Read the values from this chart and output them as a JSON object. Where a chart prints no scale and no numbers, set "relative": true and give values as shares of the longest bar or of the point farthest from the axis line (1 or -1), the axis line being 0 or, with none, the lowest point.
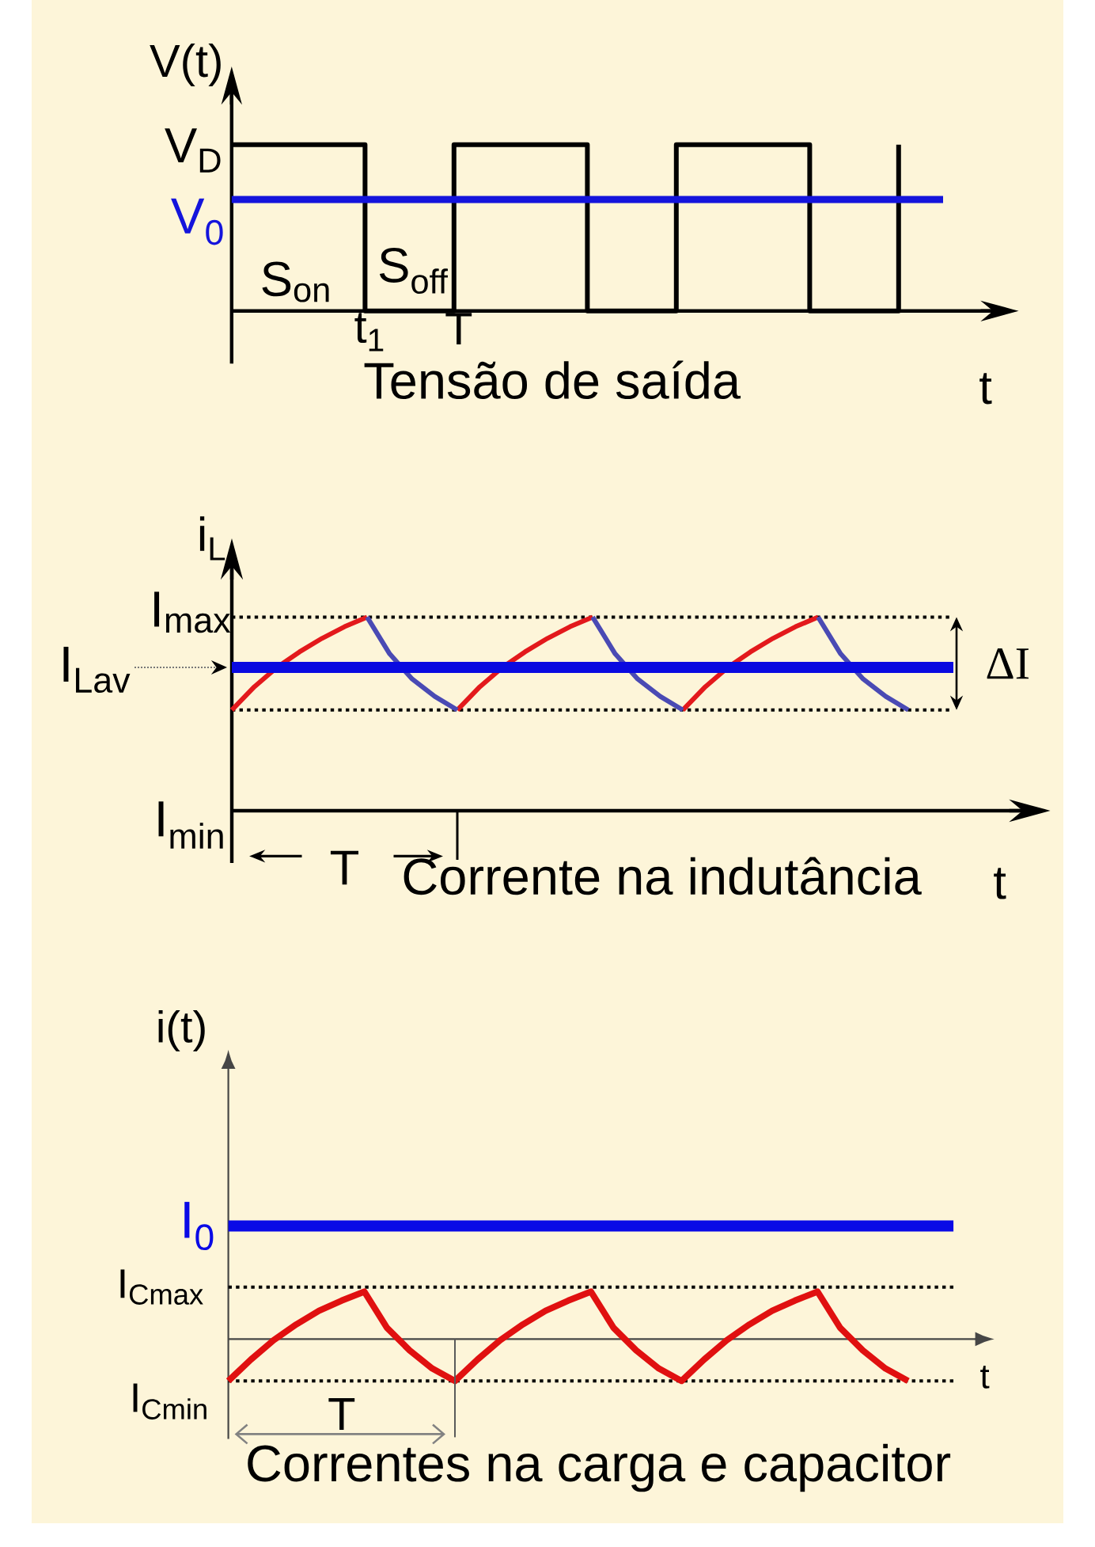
{
  "chart_data": [
    {
      "type": "line",
      "title": "Tensão de saída",
      "xlabel": "t",
      "ylabel": "V(t)",
      "relative": true,
      "categories": [
        null,
        null,
        null,
        "t$_{1}$",
        null,
        "T",
        null,
        null,
        null,
        null,
        null,
        null,
        null,
        null,
        null,
        null,
        null
      ],
      "series": [
        {
          "type": "step",
          "color": "#000000",
          "values": [
            1,
            1,
            1,
            0,
            0,
            1,
            1,
            1,
            0,
            0,
            1,
            1,
            1,
            0,
            0,
            1,
            null
          ]
        },
        {
          "name": "V$_{0}$",
          "color": "#1414dc",
          "values": [
            0.67,
            0.67,
            0.67,
            0.67,
            0.67,
            0.67,
            0.67,
            0.67,
            0.67,
            0.67,
            0.67,
            0.67,
            0.67,
            0.67,
            0.67,
            0.67,
            0.67
          ]
        }
      ],
      "annotations": [
        "V$_{D}$",
        "S$_{on}$",
        "S$_{off}$"
      ]
    },
    {
      "type": "line",
      "title": "Corrente na indutância",
      "xlabel": "t",
      "ylabel": "i$_{L}$",
      "relative": true,
      "categories": [
        null,
        null,
        null,
        null,
        null,
        null,
        null,
        null,
        null,
        null,
        null,
        null,
        null,
        null,
        null,
        null,
        null,
        null,
        null,
        null,
        null,
        null,
        null,
        null,
        null,
        null,
        null,
        null,
        null,
        null,
        null,
        null,
        null
      ],
      "series": [
        {
          "color": "#e3191c",
          "values": [
            0.52,
            0.64,
            0.74,
            0.82,
            0.89,
            0.95,
            1.0,
            null,
            null,
            null,
            0.52,
            0.64,
            0.74,
            0.82,
            0.89,
            0.95,
            1.0,
            null,
            null,
            null,
            0.52,
            0.64,
            0.74,
            0.82,
            0.89,
            0.95,
            1.0,
            null,
            null,
            null,
            null,
            null,
            null
          ]
        },
        {
          "color": "#4a4ab4",
          "values": [
            null,
            null,
            null,
            null,
            null,
            null,
            1.0,
            0.81,
            0.68,
            0.59,
            0.52,
            null,
            null,
            null,
            null,
            null,
            1.0,
            0.81,
            0.68,
            0.59,
            0.52,
            null,
            null,
            null,
            null,
            null,
            1.0,
            0.81,
            0.68,
            0.59,
            0.52,
            null,
            null
          ]
        },
        {
          "color": "#0a0ae0",
          "values": [
            0.74,
            0.74,
            0.74,
            0.74,
            0.74,
            0.74,
            0.74,
            0.74,
            0.74,
            0.74,
            0.74,
            0.74,
            0.74,
            0.74,
            0.74,
            0.74,
            0.74,
            0.74,
            0.74,
            0.74,
            0.74,
            0.74,
            0.74,
            0.74,
            0.74,
            0.74,
            0.74,
            0.74,
            0.74,
            0.74,
            0.74,
            0.74,
            0.74
          ]
        }
      ],
      "ref_lines": [
        {
          "axis": "y",
          "value": 1,
          "label": "I$_{max}$",
          "line_style": "dotted",
          "color": "#000000"
        },
        {
          "axis": "y",
          "value": 0.52,
          "line_style": "dotted",
          "color": "#000000"
        }
      ],
      "annotations": [
        "I$_{Lav}$",
        "I$_{min}$",
        "T",
        "ΔI"
      ]
    },
    {
      "type": "line",
      "title": "Correntes na carga e capacitor",
      "xlabel": "t",
      "ylabel": "i(t)",
      "relative": true,
      "categories": [
        null,
        null,
        null,
        null,
        null,
        null,
        null,
        null,
        null,
        null,
        null,
        null,
        null,
        null,
        null,
        null,
        null,
        null,
        null,
        null,
        null,
        null,
        null,
        null,
        null,
        null,
        null,
        null,
        null,
        null,
        null,
        null,
        null
      ],
      "series": [
        {
          "name": "I$_{0}$",
          "color": "#0a0ae6",
          "values": [
            1,
            1,
            1,
            1,
            1,
            1,
            1,
            1,
            1,
            1,
            1,
            1,
            1,
            1,
            1,
            1,
            1,
            1,
            1,
            1,
            1,
            1,
            1,
            1,
            1,
            1,
            1,
            1,
            1,
            1,
            1,
            1,
            1
          ]
        },
        {
          "color": "#e01010",
          "values": [
            -0.37,
            -0.18,
            -0.01,
            0.13,
            0.25,
            0.34,
            0.42,
            0.1,
            -0.1,
            -0.26,
            -0.37,
            -0.18,
            -0.01,
            0.13,
            0.25,
            0.34,
            0.42,
            0.1,
            -0.1,
            -0.26,
            -0.37,
            -0.18,
            -0.01,
            0.13,
            0.25,
            0.34,
            0.42,
            0.1,
            -0.1,
            -0.26,
            -0.37,
            null,
            null
          ]
        }
      ],
      "ref_lines": [
        {
          "axis": "y",
          "value": 0.46,
          "label": "I$_{Cmax}$",
          "line_style": "dotted",
          "color": "#000000"
        },
        {
          "axis": "y",
          "value": -0.37,
          "label": "I$_{Cmin}$",
          "line_style": "dotted",
          "color": "#000000"
        }
      ],
      "annotations": [
        "T"
      ]
    }
  ]
}
